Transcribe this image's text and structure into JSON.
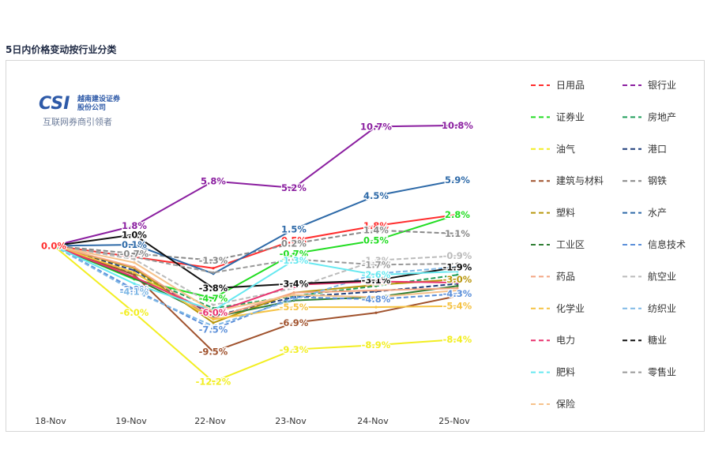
{
  "page": {
    "title": "5日内价格变动按行业分类"
  },
  "logo": {
    "brand": "CSI",
    "company_cn": "越南建设证券",
    "company_cn2": "股份公司",
    "tagline": "互联网券商引领者"
  },
  "chart_data": {
    "type": "line",
    "title": "5日内价格变动按行业分类",
    "x": [
      "18-Nov",
      "19-Nov",
      "22-Nov",
      "23-Nov",
      "24-Nov",
      "25-Nov"
    ],
    "ylim": [
      -13,
      12
    ],
    "grid": false,
    "legend_position": "right",
    "series": [
      {
        "name": "日用品",
        "color": "#ff2d2d",
        "dash": "solid",
        "values": [
          0.0,
          -1.0,
          -2.0,
          0.5,
          1.8,
          2.8
        ],
        "labels": [
          "0.0%",
          null,
          null,
          "0.5%",
          "1.8%",
          null
        ]
      },
      {
        "name": "银行业",
        "color": "#8b1fa0",
        "dash": "solid",
        "values": [
          0.0,
          1.8,
          5.8,
          5.2,
          10.7,
          10.8
        ],
        "labels": [
          null,
          "1.8%",
          "5.8%",
          "5.2%",
          "10.7%",
          "10.8%"
        ]
      },
      {
        "name": "证券业",
        "color": "#22dd22",
        "dash": "solid",
        "values": [
          0.0,
          -3.0,
          -4.7,
          -0.7,
          0.5,
          2.8
        ],
        "labels": [
          null,
          null,
          "-4.7%",
          "-0.7%",
          "0.5%",
          "2.8%"
        ]
      },
      {
        "name": "房地产",
        "color": "#1f9e5a",
        "dash": "dashed",
        "values": [
          0.0,
          -2.5,
          -5.6,
          -4.5,
          -3.6,
          -2.6
        ],
        "labels": [
          null,
          null,
          null,
          null,
          null,
          null
        ]
      },
      {
        "name": "油气",
        "color": "#f2ee22",
        "dash": "solid",
        "values": [
          0.0,
          -6.0,
          -12.2,
          -9.3,
          -8.9,
          -8.4
        ],
        "labels": [
          null,
          "-6.0%",
          "-12.2%",
          "-9.3%",
          "-8.9%",
          "-8.4%"
        ]
      },
      {
        "name": "港口",
        "color": "#1f3d7a",
        "dash": "dashed",
        "values": [
          0.0,
          -2.2,
          -6.3,
          -4.6,
          -4.1,
          -3.4
        ],
        "labels": [
          null,
          null,
          null,
          null,
          null,
          null
        ]
      },
      {
        "name": "建筑与材料",
        "color": "#a0522d",
        "dash": "solid",
        "values": [
          0.0,
          -2.6,
          -9.5,
          -6.9,
          -6.0,
          -4.5
        ],
        "labels": [
          null,
          null,
          "-9.5%",
          "-6.9%",
          null,
          null
        ]
      },
      {
        "name": "钢铁",
        "color": "#888888",
        "dash": "dashed",
        "values": [
          0.0,
          -0.7,
          -1.3,
          0.2,
          1.4,
          1.1
        ],
        "labels": [
          null,
          "-0.7%",
          "-1.3%",
          "0.2%",
          "1.4%",
          "1.1%"
        ]
      },
      {
        "name": "塑料",
        "color": "#b8960c",
        "dash": "solid",
        "values": [
          0.0,
          -2.0,
          -6.9,
          -4.2,
          -3.5,
          -3.0
        ],
        "labels": [
          null,
          null,
          null,
          null,
          null,
          "-3.0%"
        ]
      },
      {
        "name": "水产",
        "color": "#2e6aa8",
        "dash": "solid",
        "values": [
          0.0,
          0.1,
          -2.5,
          1.5,
          4.5,
          5.9
        ],
        "labels": [
          null,
          "0.1%",
          null,
          "1.5%",
          "4.5%",
          "5.9%"
        ]
      },
      {
        "name": "工业区",
        "color": "#2e7d32",
        "dash": "solid",
        "values": [
          0.0,
          -2.9,
          -6.4,
          -4.9,
          -4.6,
          -3.6
        ],
        "labels": [
          null,
          null,
          null,
          null,
          null,
          null
        ]
      },
      {
        "name": "信息技术",
        "color": "#5b8fd9",
        "dash": "dashed",
        "values": [
          0.0,
          -3.9,
          -7.5,
          -4.6,
          -4.8,
          -4.3
        ],
        "labels": [
          null,
          "-3.9%",
          "-7.5%",
          null,
          "-4.8%",
          "-4.3%"
        ]
      },
      {
        "name": "药品",
        "color": "#f4a582",
        "dash": "solid",
        "values": [
          0.0,
          -1.9,
          -6.5,
          -4.2,
          -4.0,
          -3.8
        ],
        "labels": [
          null,
          null,
          null,
          null,
          null,
          null
        ]
      },
      {
        "name": "航空业",
        "color": "#bbbbbb",
        "dash": "dashed",
        "values": [
          0.0,
          -1.2,
          -5.3,
          -3.8,
          -1.3,
          -0.9
        ],
        "labels": [
          null,
          null,
          null,
          null,
          "-1.3%",
          "-0.9%"
        ]
      },
      {
        "name": "化学业",
        "color": "#f5c242",
        "dash": "solid",
        "values": [
          0.0,
          -2.4,
          -6.6,
          -5.5,
          -5.5,
          -5.4
        ],
        "labels": [
          null,
          null,
          null,
          "-5.5%",
          null,
          "-5.4%"
        ]
      },
      {
        "name": "纺织业",
        "color": "#7fb8e6",
        "dash": "dashed",
        "values": [
          0.0,
          -4.1,
          -7.2,
          -4.8,
          -2.5,
          -1.9
        ],
        "labels": [
          null,
          "-4.1%",
          null,
          null,
          null,
          null
        ]
      },
      {
        "name": "电力",
        "color": "#e8336e",
        "dash": "solid",
        "values": [
          0.0,
          -2.8,
          -6.0,
          -3.5,
          -3.2,
          -3.3
        ],
        "labels": [
          null,
          null,
          "-6.0%",
          "-3.5%",
          "-3.2%",
          null
        ]
      },
      {
        "name": "糖业",
        "color": "#111111",
        "dash": "solid",
        "values": [
          0.0,
          1.0,
          -3.8,
          -3.4,
          -3.1,
          -1.9
        ],
        "labels": [
          null,
          "1.0%",
          "-3.8%",
          "-3.4%",
          "-3.1%",
          "-1.9%"
        ]
      },
      {
        "name": "肥料",
        "color": "#66e8f0",
        "dash": "solid",
        "values": [
          0.0,
          -3.4,
          -5.8,
          -1.3,
          -2.6,
          -2.3
        ],
        "labels": [
          null,
          null,
          null,
          "-1.3%",
          "-2.6%",
          null
        ]
      },
      {
        "name": "零售业",
        "color": "#999999",
        "dash": "dashed",
        "values": [
          0.0,
          -1.0,
          -2.4,
          -1.2,
          -1.7,
          -1.6
        ],
        "labels": [
          null,
          null,
          null,
          null,
          "-1.7%",
          null
        ]
      },
      {
        "name": "保险",
        "color": "#f6c28b",
        "dash": "solid",
        "values": [
          0.0,
          -1.5,
          -5.9,
          -4.4,
          -4.6,
          -4.0
        ],
        "labels": [
          null,
          null,
          null,
          null,
          null,
          null
        ]
      }
    ]
  }
}
